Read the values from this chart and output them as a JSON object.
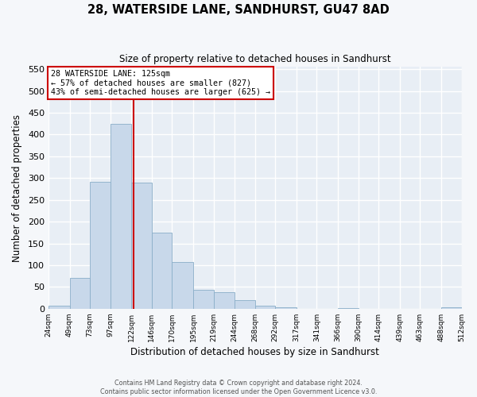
{
  "title": "28, WATERSIDE LANE, SANDHURST, GU47 8AD",
  "subtitle": "Size of property relative to detached houses in Sandhurst",
  "xlabel": "Distribution of detached houses by size in Sandhurst",
  "ylabel": "Number of detached properties",
  "bar_color": "#c8d8ea",
  "bar_edgecolor": "#8aaec8",
  "background_color": "#e8eef5",
  "fig_background": "#f5f7fa",
  "grid_color": "#ffffff",
  "vline_x": 125,
  "vline_color": "#cc0000",
  "annotation_title": "28 WATERSIDE LANE: 125sqm",
  "annotation_line1": "← 57% of detached houses are smaller (827)",
  "annotation_line2": "43% of semi-detached houses are larger (625) →",
  "bin_edges": [
    24,
    49,
    73,
    97,
    122,
    146,
    170,
    195,
    219,
    244,
    268,
    292,
    317,
    341,
    366,
    390,
    414,
    439,
    463,
    488,
    512
  ],
  "bin_heights": [
    7,
    70,
    291,
    425,
    290,
    175,
    107,
    43,
    38,
    20,
    7,
    4,
    0,
    0,
    2,
    0,
    0,
    0,
    0,
    3
  ],
  "tick_labels": [
    "24sqm",
    "49sqm",
    "73sqm",
    "97sqm",
    "122sqm",
    "146sqm",
    "170sqm",
    "195sqm",
    "219sqm",
    "244sqm",
    "268sqm",
    "292sqm",
    "317sqm",
    "341sqm",
    "366sqm",
    "390sqm",
    "414sqm",
    "439sqm",
    "463sqm",
    "488sqm",
    "512sqm"
  ],
  "ylim": [
    0,
    555
  ],
  "yticks": [
    0,
    50,
    100,
    150,
    200,
    250,
    300,
    350,
    400,
    450,
    500,
    550
  ],
  "footer_line1": "Contains HM Land Registry data © Crown copyright and database right 2024.",
  "footer_line2": "Contains public sector information licensed under the Open Government Licence v3.0."
}
